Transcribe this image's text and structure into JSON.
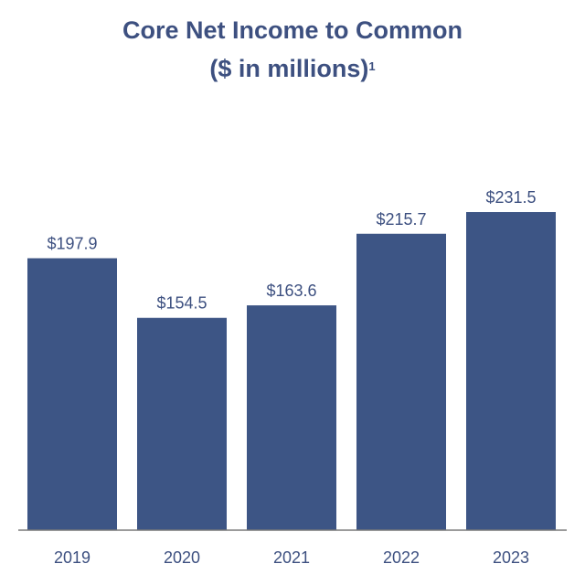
{
  "chart_data": {
    "type": "bar",
    "title": "Core Net Income to Common",
    "subtitle": "($ in millions)",
    "subtitle_superscript": "1",
    "categories": [
      "2019",
      "2020",
      "2021",
      "2022",
      "2023"
    ],
    "values": [
      197.9,
      154.5,
      163.6,
      215.7,
      231.5
    ],
    "value_labels": [
      "$197.9",
      "$154.5",
      "$163.6",
      "$215.7",
      "$231.5"
    ],
    "ylim": [
      0,
      231.5
    ],
    "grid": false,
    "legend": "none",
    "bar_color": "#3d5585",
    "text_color": "#3d5080",
    "axis_color": "#7a7a7a"
  }
}
